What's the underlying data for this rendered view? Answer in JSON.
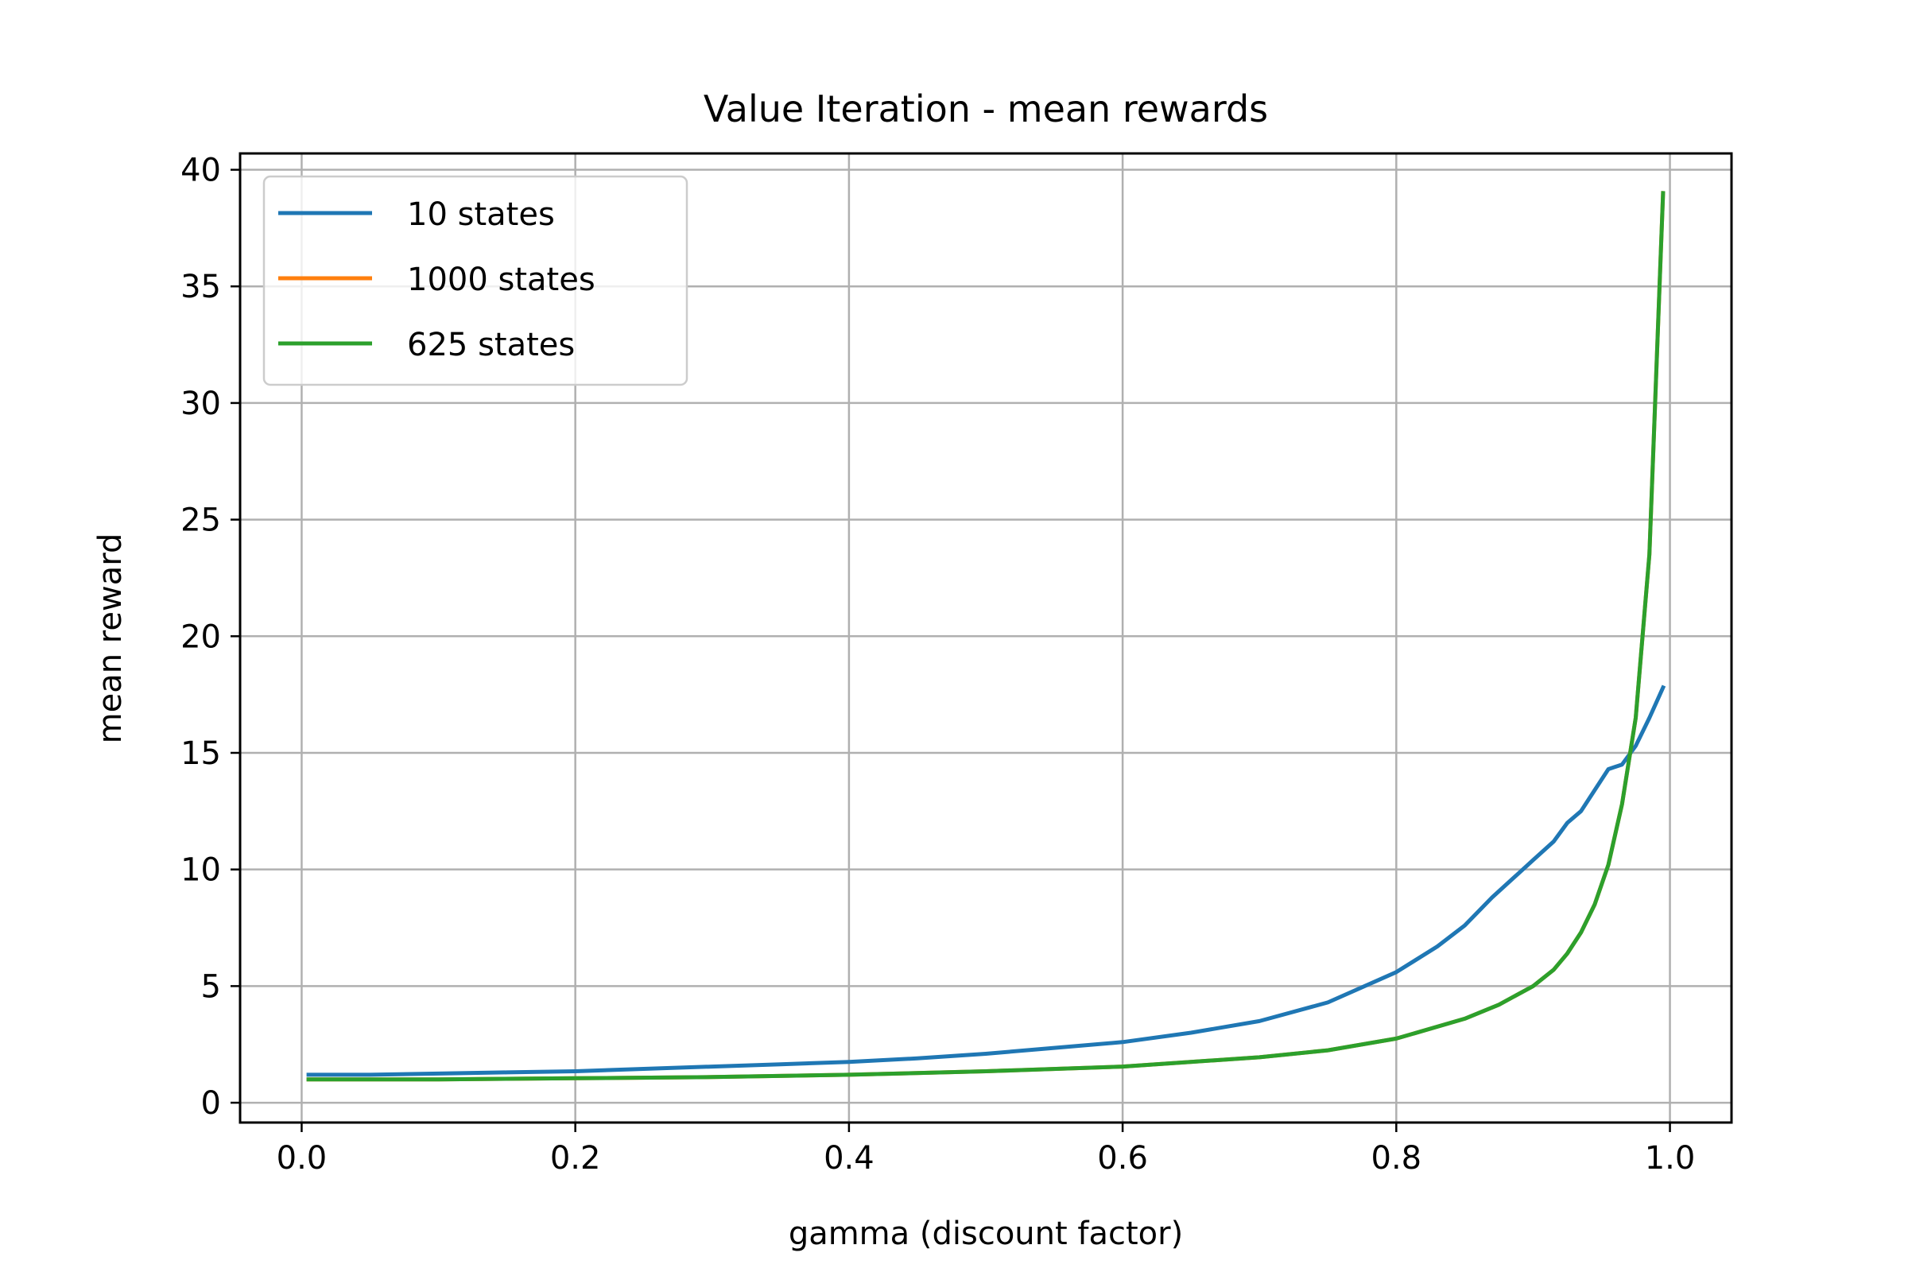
{
  "chart_data": {
    "type": "line",
    "title": "Value Iteration - mean rewards",
    "xlabel": "gamma (discount factor)",
    "ylabel": "mean reward",
    "xlim": [
      -0.045,
      1.045
    ],
    "ylim": [
      -0.85,
      40.7
    ],
    "xticks": [
      0.0,
      0.2,
      0.4,
      0.6,
      0.8,
      1.0
    ],
    "xtick_labels": [
      "0.0",
      "0.2",
      "0.4",
      "0.6",
      "0.8",
      "1.0"
    ],
    "yticks": [
      0,
      5,
      10,
      15,
      20,
      25,
      30,
      35,
      40
    ],
    "ytick_labels": [
      "0",
      "5",
      "10",
      "15",
      "20",
      "25",
      "30",
      "35",
      "40"
    ],
    "grid": true,
    "legend": "upper-left",
    "series": [
      {
        "name": "10 states",
        "color": "#1f77b4",
        "x": [
          0.005,
          0.05,
          0.1,
          0.15,
          0.2,
          0.25,
          0.3,
          0.35,
          0.4,
          0.45,
          0.5,
          0.55,
          0.6,
          0.65,
          0.7,
          0.75,
          0.8,
          0.83,
          0.85,
          0.87,
          0.885,
          0.9,
          0.915,
          0.925,
          0.935,
          0.945,
          0.955,
          0.965,
          0.975,
          0.985,
          0.995
        ],
        "y": [
          1.2,
          1.2,
          1.25,
          1.3,
          1.35,
          1.45,
          1.55,
          1.65,
          1.75,
          1.9,
          2.1,
          2.35,
          2.6,
          3.0,
          3.5,
          4.3,
          5.6,
          6.7,
          7.6,
          8.8,
          9.6,
          10.4,
          11.2,
          12.0,
          12.5,
          13.4,
          14.3,
          14.5,
          15.3,
          16.5,
          17.8
        ]
      },
      {
        "name": "1000 states",
        "color": "#ff7f0e",
        "x": [
          0.005,
          0.1,
          0.2,
          0.3,
          0.4,
          0.5,
          0.6,
          0.7,
          0.75,
          0.8,
          0.85,
          0.875,
          0.9,
          0.915,
          0.925,
          0.935,
          0.945,
          0.955,
          0.965,
          0.975,
          0.985,
          0.995
        ],
        "y": [
          1.0,
          1.0,
          1.05,
          1.1,
          1.2,
          1.35,
          1.55,
          1.95,
          2.25,
          2.75,
          3.6,
          4.2,
          5.0,
          5.7,
          6.4,
          7.3,
          8.5,
          10.2,
          12.8,
          16.5,
          23.5,
          39.0
        ]
      },
      {
        "name": "625 states",
        "color": "#2ca02c",
        "x": [
          0.005,
          0.1,
          0.2,
          0.3,
          0.4,
          0.5,
          0.6,
          0.7,
          0.75,
          0.8,
          0.85,
          0.875,
          0.9,
          0.915,
          0.925,
          0.935,
          0.945,
          0.955,
          0.965,
          0.975,
          0.985,
          0.995
        ],
        "y": [
          1.0,
          1.0,
          1.05,
          1.1,
          1.2,
          1.35,
          1.55,
          1.95,
          2.25,
          2.75,
          3.6,
          4.2,
          5.0,
          5.7,
          6.4,
          7.3,
          8.5,
          10.2,
          12.8,
          16.5,
          23.5,
          39.0
        ]
      }
    ]
  }
}
